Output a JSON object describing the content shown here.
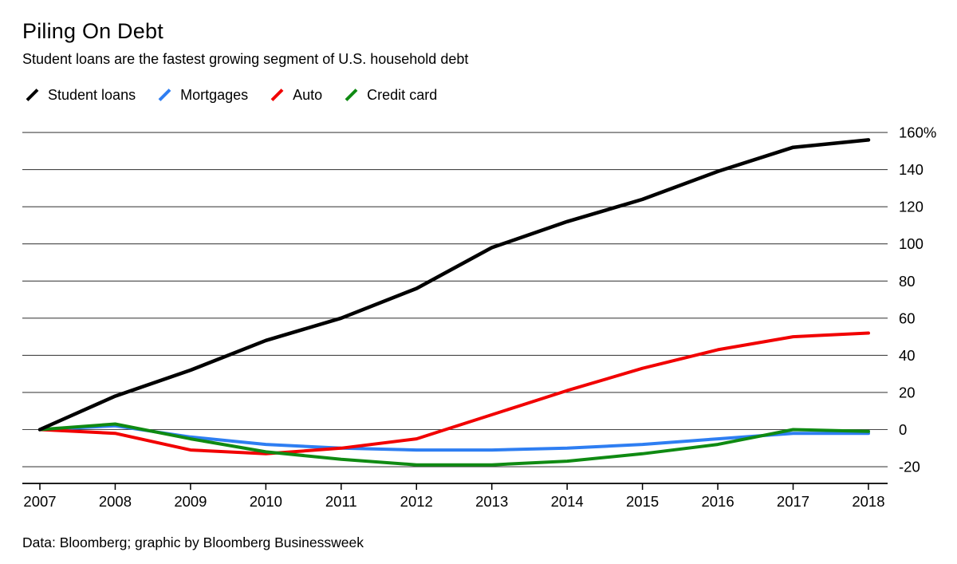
{
  "page": {
    "title": "Piling On Debt",
    "subtitle": "Student loans are the fastest growing segment of U.S. household debt",
    "footer": "Data: Bloomberg; graphic by Bloomberg Businessweek"
  },
  "chart_data": {
    "type": "line",
    "title": "Piling On Debt",
    "subtitle": "Student loans are the fastest growing segment of U.S. household debt",
    "source": "Data: Bloomberg; graphic by Bloomberg Businessweek",
    "x": [
      2007,
      2008,
      2009,
      2010,
      2011,
      2012,
      2013,
      2014,
      2015,
      2016,
      2017,
      2018
    ],
    "series": [
      {
        "name": "Student loans",
        "color": "#000000",
        "values": [
          0,
          18,
          32,
          48,
          60,
          76,
          98,
          112,
          124,
          139,
          152,
          156
        ]
      },
      {
        "name": "Mortgages",
        "color": "#2e7ef2",
        "values": [
          0,
          2,
          -4,
          -8,
          -10,
          -11,
          -11,
          -10,
          -8,
          -5,
          -2,
          -2
        ]
      },
      {
        "name": "Auto",
        "color": "#f10000",
        "values": [
          0,
          -2,
          -11,
          -13,
          -10,
          -5,
          8,
          21,
          33,
          43,
          50,
          52
        ]
      },
      {
        "name": "Credit card",
        "color": "#0f8a12",
        "values": [
          0,
          3,
          -5,
          -12,
          -16,
          -19,
          -19,
          -17,
          -13,
          -8,
          0,
          -1
        ]
      }
    ],
    "ylim": [
      -20,
      160
    ],
    "yticks": [
      {
        "value": 160,
        "label": "160%"
      },
      {
        "value": 140,
        "label": "140"
      },
      {
        "value": 120,
        "label": "120"
      },
      {
        "value": 100,
        "label": "100"
      },
      {
        "value": 80,
        "label": "80"
      },
      {
        "value": 60,
        "label": "60"
      },
      {
        "value": 40,
        "label": "40"
      },
      {
        "value": 20,
        "label": "20"
      },
      {
        "value": 0,
        "label": "0"
      },
      {
        "value": -20,
        "label": "-20"
      }
    ],
    "grid": true,
    "legend_position": "top-left",
    "y_axis_side": "right"
  }
}
